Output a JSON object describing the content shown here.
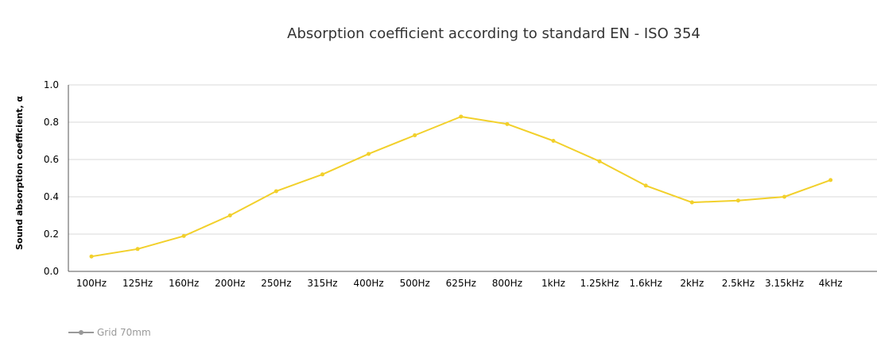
{
  "chart_data": {
    "type": "line",
    "title": "Absorption coefficient according to standard EN - ISO 354",
    "ylabel": "Sound absorption coefficient, α",
    "xlabel": "",
    "ylim": [
      0,
      1.0
    ],
    "yticks": [
      "0.0",
      "0.2",
      "0.4",
      "0.6",
      "0.8",
      "1.0"
    ],
    "grid": true,
    "legend_position": "bottom-left",
    "categories": [
      "100Hz",
      "125Hz",
      "160Hz",
      "200Hz",
      "250Hz",
      "315Hz",
      "400Hz",
      "500Hz",
      "625Hz",
      "800Hz",
      "1kHz",
      "1.25kHz",
      "1.6kHz",
      "2kHz",
      "2.5kHz",
      "3.15kHz",
      "4kHz"
    ],
    "series": [
      {
        "name": "Grid 70mm",
        "color": "#f2d02b",
        "legend_color": "#999999",
        "values": [
          0.08,
          0.12,
          0.19,
          0.3,
          0.43,
          0.52,
          0.63,
          0.73,
          0.83,
          0.79,
          0.7,
          0.59,
          0.46,
          0.37,
          0.38,
          0.4,
          0.49
        ]
      }
    ]
  }
}
